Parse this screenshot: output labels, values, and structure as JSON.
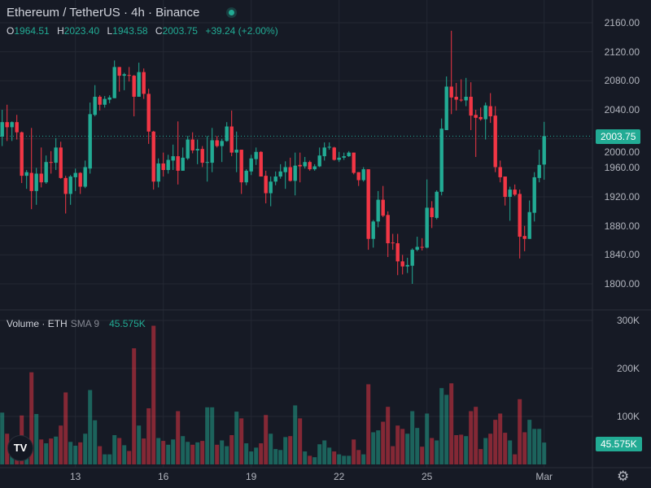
{
  "header": {
    "title": "Ethereum / TetherUS · 4h · Binance",
    "ohlc": {
      "o_label": "O",
      "o": "1964.51",
      "h_label": "H",
      "h": "2023.40",
      "l_label": "L",
      "l": "1943.58",
      "c_label": "C",
      "c": "2003.75",
      "change": "+39.24 (+2.00%)"
    },
    "status_dot_color": "#22ab94"
  },
  "volume_legend": {
    "label": "Volume · ETH",
    "sma": "SMA 9",
    "value": "45.575K"
  },
  "current_price_label": "2003.75",
  "current_volume_label": "45.575K",
  "logo_text": "TV",
  "icons": {
    "settings": "gear-icon",
    "logo": "tradingview-logo"
  },
  "chart_data": {
    "type": "candlestick",
    "symbol": "ETH/USDT",
    "interval": "4h",
    "colors": {
      "up": "#22ab94",
      "down": "#f23645"
    },
    "price_axis": {
      "ticks": [
        "2160.00",
        "2120.00",
        "2080.00",
        "2040.00",
        "2000.00",
        "1960.00",
        "1920.00",
        "1880.00",
        "1840.00",
        "1800.00"
      ],
      "tick_values": [
        2160,
        2120,
        2080,
        2040,
        2000,
        1960,
        1920,
        1880,
        1840,
        1800
      ]
    },
    "volume_axis": {
      "ticks": [
        "300K",
        "200K",
        "100K"
      ],
      "tick_values": [
        300,
        200,
        100
      ],
      "unit": "K"
    },
    "x_ticks": [
      {
        "label": "13",
        "candle": 16
      },
      {
        "label": "16",
        "candle": 34
      },
      {
        "label": "19",
        "candle": 52
      },
      {
        "label": "22",
        "candle": 70
      },
      {
        "label": "25",
        "candle": 88
      },
      {
        "label": "Mar",
        "candle": 112
      }
    ],
    "grid": true,
    "fields": [
      "open",
      "high",
      "low",
      "close",
      "volume_K"
    ],
    "candles": [
      [
        2003,
        2040,
        1990,
        2023,
        108
      ],
      [
        2023,
        2047,
        1997,
        2016,
        64
      ],
      [
        2016,
        2024,
        1997,
        2023,
        40
      ],
      [
        2023,
        2033,
        1999,
        2009,
        45
      ],
      [
        2009,
        2010,
        1939,
        1949,
        102
      ],
      [
        1949,
        1957,
        1931,
        1954,
        50
      ],
      [
        1953,
        2015,
        1903,
        1928,
        192
      ],
      [
        1928,
        1960,
        1909,
        1952,
        105
      ],
      [
        1952,
        1988,
        1933,
        1940,
        52
      ],
      [
        1940,
        1977,
        1938,
        1968,
        44
      ],
      [
        1968,
        1983,
        1952,
        1967,
        54
      ],
      [
        1967,
        2001,
        1957,
        1988,
        58
      ],
      [
        1988,
        1996,
        1945,
        1946,
        81
      ],
      [
        1946,
        1949,
        1897,
        1924,
        150
      ],
      [
        1924,
        1950,
        1909,
        1948,
        47
      ],
      [
        1947,
        1959,
        1928,
        1953,
        39
      ],
      [
        1953,
        1954,
        1924,
        1934,
        46
      ],
      [
        1934,
        1970,
        1932,
        1961,
        64
      ],
      [
        1959,
        2050,
        1952,
        2034,
        155
      ],
      [
        2033,
        2074,
        2031,
        2058,
        92
      ],
      [
        2058,
        2060,
        2039,
        2047,
        38
      ],
      [
        2047,
        2059,
        2043,
        2055,
        21
      ],
      [
        2054,
        2060,
        2049,
        2057,
        21
      ],
      [
        2056,
        2108,
        2056,
        2099,
        61
      ],
      [
        2099,
        2099,
        2065,
        2087,
        55
      ],
      [
        2087,
        2091,
        2067,
        2089,
        40
      ],
      [
        2088,
        2099,
        2079,
        2087,
        28
      ],
      [
        2087,
        2088,
        2031,
        2058,
        242
      ],
      [
        2058,
        2105,
        2058,
        2092,
        81
      ],
      [
        2092,
        2097,
        2055,
        2062,
        54
      ],
      [
        2062,
        2069,
        1993,
        2010,
        117
      ],
      [
        2010,
        2011,
        1930,
        1941,
        289
      ],
      [
        1941,
        1973,
        1933,
        1966,
        55
      ],
      [
        1966,
        1981,
        1948,
        1957,
        49
      ],
      [
        1957,
        1978,
        1952,
        1971,
        41
      ],
      [
        1970,
        1992,
        1957,
        1976,
        52
      ],
      [
        1976,
        2024,
        1937,
        1956,
        111
      ],
      [
        1956,
        1988,
        1956,
        1974,
        59
      ],
      [
        1973,
        2004,
        1971,
        1999,
        47
      ],
      [
        1999,
        2009,
        1980,
        1984,
        41
      ],
      [
        1984,
        1999,
        1965,
        1986,
        46
      ],
      [
        1986,
        1990,
        1961,
        1967,
        49
      ],
      [
        1967,
        2004,
        1941,
        1968,
        119
      ],
      [
        1967,
        2015,
        1954,
        1998,
        119
      ],
      [
        1998,
        2004,
        1988,
        1990,
        41
      ],
      [
        1990,
        2000,
        1968,
        1997,
        50
      ],
      [
        1997,
        2023,
        1996,
        2017,
        38
      ],
      [
        2017,
        2039,
        1976,
        1981,
        61
      ],
      [
        1981,
        2010,
        1954,
        1985,
        110
      ],
      [
        1985,
        1985,
        1924,
        1940,
        96
      ],
      [
        1940,
        1958,
        1936,
        1956,
        44
      ],
      [
        1955,
        1978,
        1950,
        1973,
        27
      ],
      [
        1972,
        1988,
        1964,
        1982,
        35
      ],
      [
        1982,
        1983,
        1948,
        1948,
        44
      ],
      [
        1949,
        1956,
        1911,
        1925,
        103
      ],
      [
        1925,
        1948,
        1907,
        1941,
        64
      ],
      [
        1941,
        1955,
        1936,
        1948,
        32
      ],
      [
        1948,
        1965,
        1945,
        1955,
        30
      ],
      [
        1954,
        1969,
        1931,
        1961,
        57
      ],
      [
        1961,
        1974,
        1941,
        1942,
        59
      ],
      [
        1942,
        1981,
        1922,
        1963,
        123
      ],
      [
        1964,
        1981,
        1940,
        1962,
        96
      ],
      [
        1962,
        1975,
        1959,
        1968,
        27
      ],
      [
        1968,
        1970,
        1956,
        1958,
        18
      ],
      [
        1958,
        1965,
        1956,
        1962,
        15
      ],
      [
        1962,
        1988,
        1961,
        1977,
        42
      ],
      [
        1976,
        1995,
        1970,
        1988,
        50
      ],
      [
        1988,
        1995,
        1985,
        1989,
        35
      ],
      [
        1988,
        1989,
        1970,
        1971,
        27
      ],
      [
        1971,
        1982,
        1968,
        1974,
        21
      ],
      [
        1974,
        1981,
        1971,
        1976,
        18
      ],
      [
        1976,
        1983,
        1975,
        1981,
        18
      ],
      [
        1981,
        1981,
        1951,
        1953,
        52
      ],
      [
        1954,
        1954,
        1935,
        1943,
        30
      ],
      [
        1943,
        1961,
        1941,
        1958,
        21
      ],
      [
        1958,
        1958,
        1847,
        1862,
        167
      ],
      [
        1862,
        1888,
        1850,
        1886,
        67
      ],
      [
        1886,
        1928,
        1878,
        1916,
        71
      ],
      [
        1916,
        1935,
        1892,
        1894,
        89
      ],
      [
        1895,
        1900,
        1837,
        1856,
        120
      ],
      [
        1857,
        1869,
        1847,
        1856,
        38
      ],
      [
        1856,
        1869,
        1812,
        1831,
        81
      ],
      [
        1831,
        1840,
        1813,
        1824,
        74
      ],
      [
        1824,
        1836,
        1815,
        1826,
        64
      ],
      [
        1825,
        1849,
        1800,
        1847,
        111
      ],
      [
        1847,
        1865,
        1845,
        1851,
        76
      ],
      [
        1851,
        1863,
        1846,
        1850,
        37
      ],
      [
        1850,
        1944,
        1849,
        1905,
        106
      ],
      [
        1905,
        1914,
        1877,
        1892,
        55
      ],
      [
        1891,
        1929,
        1889,
        1927,
        50
      ],
      [
        1927,
        2028,
        1922,
        2014,
        159
      ],
      [
        2012,
        2086,
        2012,
        2072,
        145
      ],
      [
        2072,
        2149,
        2034,
        2057,
        169
      ],
      [
        2058,
        2077,
        2039,
        2054,
        61
      ],
      [
        2054,
        2082,
        2051,
        2053,
        62
      ],
      [
        2053,
        2084,
        2045,
        2058,
        59
      ],
      [
        2058,
        2078,
        2012,
        2032,
        111
      ],
      [
        2033,
        2040,
        1975,
        2029,
        120
      ],
      [
        2030,
        2043,
        2025,
        2027,
        32
      ],
      [
        2027,
        2050,
        1999,
        2046,
        55
      ],
      [
        2045,
        2063,
        2022,
        2031,
        64
      ],
      [
        2032,
        2045,
        1954,
        1961,
        93
      ],
      [
        1961,
        1970,
        1940,
        1947,
        106
      ],
      [
        1948,
        1948,
        1908,
        1920,
        66
      ],
      [
        1920,
        1934,
        1887,
        1930,
        50
      ],
      [
        1930,
        1937,
        1921,
        1923,
        21
      ],
      [
        1924,
        1930,
        1835,
        1865,
        136
      ],
      [
        1866,
        1880,
        1845,
        1862,
        67
      ],
      [
        1862,
        1915,
        1862,
        1899,
        93
      ],
      [
        1898,
        1954,
        1886,
        1947,
        74
      ],
      [
        1946,
        1985,
        1940,
        1964,
        74
      ],
      [
        1964.51,
        2023.4,
        1943.58,
        2003.75,
        45.575
      ]
    ],
    "last_price": 2003.75
  }
}
